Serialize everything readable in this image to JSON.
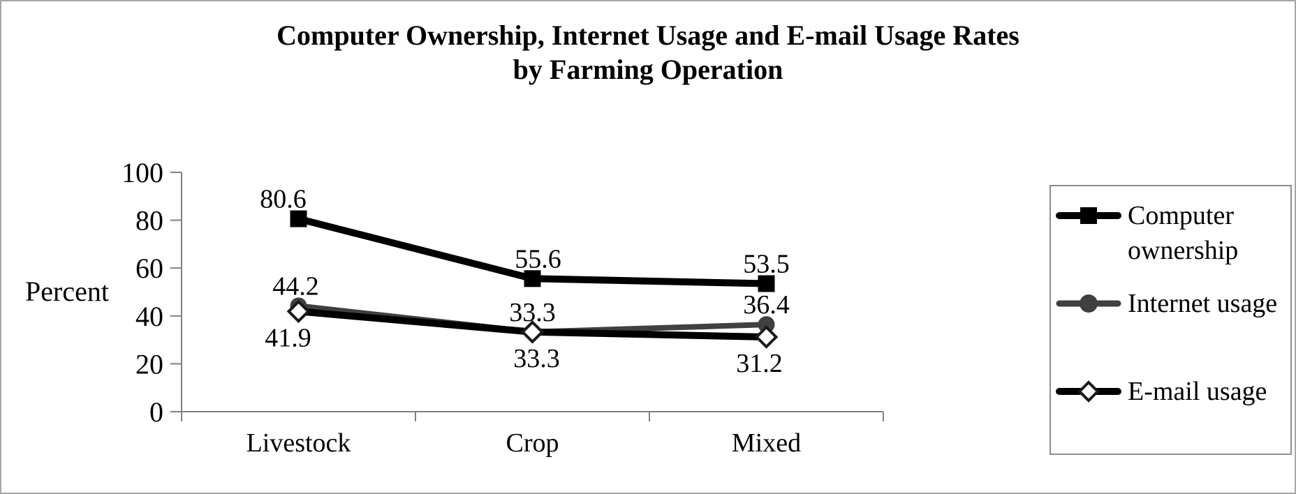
{
  "frame": {
    "background": "#ffffff",
    "border_color": "#a8a8a8"
  },
  "chart_data": {
    "type": "line",
    "title_line1": "Computer Ownership, Internet Usage and E-mail Usage Rates",
    "title_line2": "by Farming Operation",
    "ylabel": "Percent",
    "xlabel": "",
    "categories": [
      "Livestock",
      "Crop",
      "Mixed"
    ],
    "y_ticks": [
      0,
      20,
      40,
      60,
      80,
      100
    ],
    "ylim": [
      0,
      100
    ],
    "grid": "off",
    "legend_position": "right",
    "axis_color": "#808080",
    "series": [
      {
        "name": "Computer ownership",
        "values": [
          80.6,
          55.6,
          53.5
        ],
        "data_labels": [
          "80.6",
          "55.6",
          "53.5"
        ],
        "color": "#000000",
        "marker": "square",
        "marker_fill": "#000000",
        "label_position": "above"
      },
      {
        "name": "Internet usage",
        "values": [
          44.2,
          33.3,
          36.4
        ],
        "data_labels": [
          "44.2",
          "33.3",
          "36.4"
        ],
        "color": "#404040",
        "marker": "circle",
        "marker_fill": "#404040",
        "label_position": "above"
      },
      {
        "name": "E-mail usage",
        "values": [
          41.9,
          33.3,
          31.2
        ],
        "data_labels": [
          "41.9",
          "33.3",
          "31.2"
        ],
        "color": "#000000",
        "marker": "diamond-open",
        "marker_fill": "#ffffff",
        "label_position": "below"
      }
    ]
  }
}
